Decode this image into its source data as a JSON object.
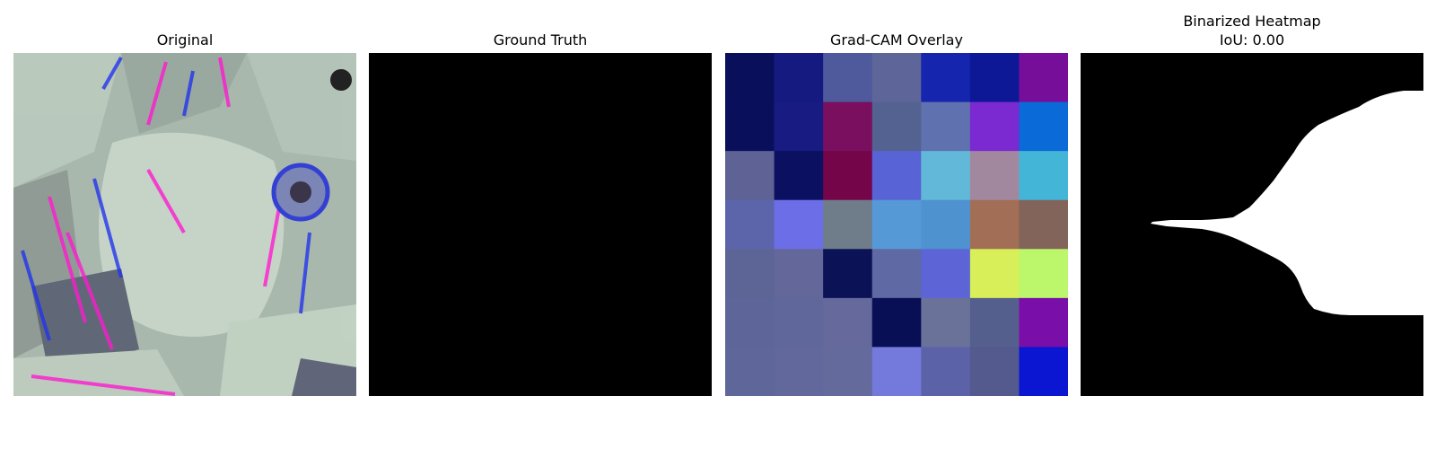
{
  "panels": [
    {
      "title": "Original"
    },
    {
      "title": "Ground Truth"
    },
    {
      "title": "Grad-CAM Overlay"
    },
    {
      "title": "Binarized Heatmap",
      "subtitle": "IoU: 0.00"
    }
  ],
  "gradcam_colors": [
    [
      "#0a0f5c",
      "#151a80",
      "#4e5a9c",
      "#5e6599",
      "#1525ad",
      "#0d1896",
      "#770e9a"
    ],
    [
      "#0a0f5c",
      "#171b82",
      "#790f5e",
      "#546292",
      "#5f71ae",
      "#7a2ad0",
      "#0a6ad8"
    ],
    [
      "#5e6294",
      "#0c1060",
      "#750549",
      "#5864d5",
      "#62b8d8",
      "#a2889f",
      "#43b6d8"
    ],
    [
      "#5d65aa",
      "#6c6ee8",
      "#6f7c8a",
      "#5599d6",
      "#4e92d0",
      "#a26f56",
      "#83645b"
    ],
    [
      "#5c6596",
      "#63679a",
      "#0c1256",
      "#5f69a4",
      "#5c64d6",
      "#d8ef5a",
      "#bcf66a"
    ],
    [
      "#5e6598",
      "#60679a",
      "#65699c",
      "#080f55",
      "#6b7299",
      "#555f8e",
      "#7a0ea8"
    ],
    [
      "#5f6699",
      "#62689b",
      "#646a9c",
      "#7479dc",
      "#5c62a8",
      "#54598e",
      "#0a16d2"
    ]
  ]
}
